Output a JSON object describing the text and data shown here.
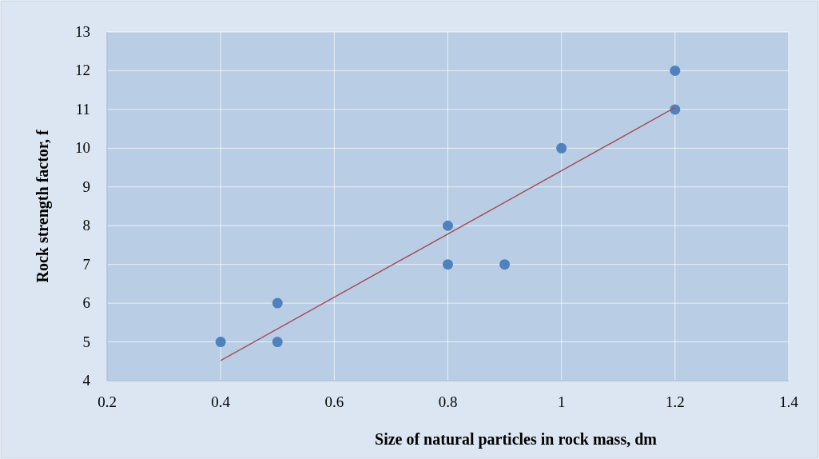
{
  "chart_data": {
    "type": "scatter",
    "xlabel": "Size of natural particles in rock mass, dm",
    "ylabel": "Rock strength factor, f",
    "xlim": [
      0.2,
      1.4
    ],
    "xticks": [
      0.2,
      0.4,
      0.6,
      0.8,
      1,
      1.2,
      1.4
    ],
    "ylim": [
      4,
      13
    ],
    "yticks": [
      4,
      5,
      6,
      7,
      8,
      9,
      10,
      11,
      12,
      13
    ],
    "grid": true,
    "series": [
      {
        "marker": "circle",
        "color": "#4f81bd",
        "x": [
          0.4,
          0.5,
          0.5,
          0.8,
          0.8,
          0.9,
          1,
          1.2,
          1.2
        ],
        "values": [
          5,
          6,
          5,
          8,
          7,
          7,
          10,
          12,
          11
        ]
      },
      {
        "type": "line",
        "color": "#a5525a",
        "x": [
          0.4,
          1.2
        ],
        "values": [
          4.52,
          11.05
        ]
      }
    ]
  }
}
